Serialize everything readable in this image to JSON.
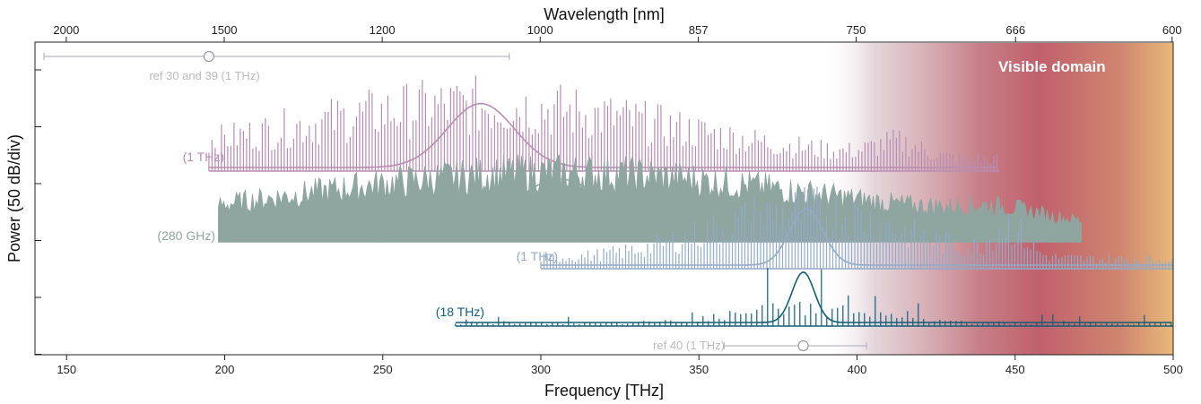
{
  "chart_data": {
    "type": "line",
    "xlabel": "Frequency [THz]",
    "x2label": "Wavelength [nm]",
    "ylabel": "Power (50 dB/div)",
    "xlim": [
      140,
      500
    ],
    "x_ticks": [
      150,
      200,
      250,
      300,
      350,
      400,
      450,
      500
    ],
    "x2_ticks": [
      "2000",
      "1500",
      "1200",
      "1000",
      "857",
      "750",
      "666",
      "600"
    ],
    "y_ticks_count": 6,
    "visible_domain": {
      "label": "Visible domain",
      "start_thz": 400,
      "end_thz": 500
    },
    "series": [
      {
        "name": "(1 THz)",
        "color": "#b98db3",
        "range_thz": [
          195,
          445
        ],
        "peak_thz": 281,
        "style": "comb"
      },
      {
        "name": "(280 GHz)",
        "color": "#8fa6a0",
        "range_thz": [
          198,
          471
        ],
        "peak_thz": 306,
        "style": "dense"
      },
      {
        "name": "(1 THz)",
        "color": "#93aac8",
        "range_thz": [
          300,
          500
        ],
        "peak_thz": 384,
        "style": "comb"
      },
      {
        "name": "(18 THz)",
        "color": "#0f5e78",
        "range_thz": [
          273,
          500
        ],
        "peak_thz": 383,
        "style": "sparse"
      }
    ],
    "references": [
      {
        "label": "ref 30 and 39 (1 THz)",
        "center_thz": 195,
        "range_thz": [
          140,
          290
        ],
        "color": "#b8b8c4"
      },
      {
        "label": "ref 40 (1 THz)",
        "center_thz": 383,
        "range_thz": [
          358,
          403
        ],
        "color": "#b8b8c4"
      }
    ]
  }
}
